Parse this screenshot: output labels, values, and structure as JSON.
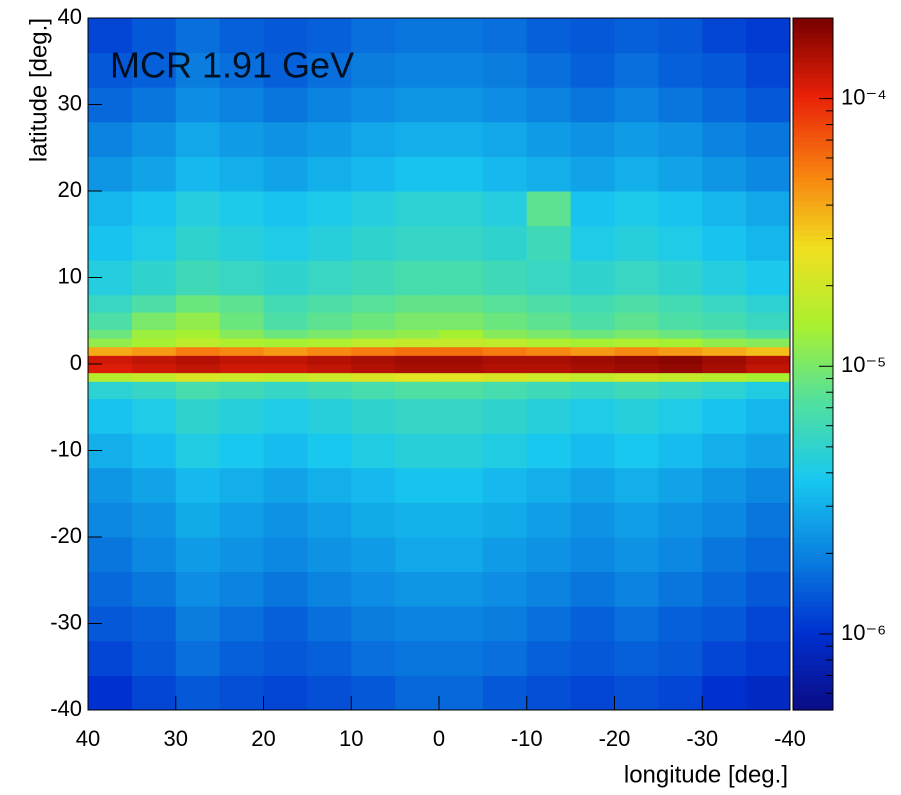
{
  "chart_data": {
    "type": "heatmap",
    "title": "MCR 1.91 GeV",
    "x_label": "longitude [deg.]",
    "y_label": "latitude [deg.]",
    "xlim": [
      40,
      -40
    ],
    "ylim": [
      -40,
      40
    ],
    "xticks": [
      40,
      30,
      20,
      10,
      0,
      -10,
      -20,
      -30,
      -40
    ],
    "yticks": [
      -40,
      -30,
      -20,
      -10,
      0,
      10,
      20,
      30,
      40
    ],
    "log_z": true,
    "zlim": [
      5.2e-07,
      0.0002
    ],
    "zticks": [
      {
        "value": 1e-06,
        "label": "10⁻⁶"
      },
      {
        "value": 1e-05,
        "label": "10⁻⁵"
      },
      {
        "value": 0.0001,
        "label": "10⁻⁴"
      }
    ],
    "colorscale": [
      "#0b0b85",
      "#0030d0",
      "#0a80e0",
      "#18c8f0",
      "#50e0a0",
      "#a8f030",
      "#f0e020",
      "#f88010",
      "#e82008",
      "#780000"
    ],
    "x_bins": [
      40,
      35,
      30,
      25,
      20,
      15,
      10,
      5,
      0,
      -5,
      -10,
      -15,
      -20,
      -25,
      -30,
      -35,
      -40
    ],
    "y_bins": [
      -40,
      -36,
      -32,
      -28,
      -24,
      -20,
      -16,
      -12,
      -8,
      -4,
      -2,
      -1,
      0,
      1,
      2,
      3,
      4,
      6,
      8,
      12,
      16,
      20,
      24,
      28,
      32,
      36,
      40
    ],
    "z": [
      [
        1e-06,
        1.2e-06,
        1.4e-06,
        1.3e-06,
        1.2e-06,
        1.3e-06,
        1.4e-06,
        1.6e-06,
        1.6e-06,
        1.4e-06,
        1.3e-06,
        1.2e-06,
        1.3e-06,
        1.2e-06,
        1e-06,
        9e-07
      ],
      [
        1.2e-06,
        1.4e-06,
        1.7e-06,
        1.5e-06,
        1.4e-06,
        1.5e-06,
        1.7e-06,
        1.8e-06,
        1.8e-06,
        1.7e-06,
        1.5e-06,
        1.4e-06,
        1.5e-06,
        1.4e-06,
        1.2e-06,
        1.1e-06
      ],
      [
        1.4e-06,
        1.5e-06,
        1.9e-06,
        1.7e-06,
        1.5e-06,
        1.7e-06,
        1.9e-06,
        2e-06,
        2e-06,
        1.9e-06,
        1.7e-06,
        1.5e-06,
        1.7e-06,
        1.5e-06,
        1.4e-06,
        1.2e-06
      ],
      [
        1.6e-06,
        1.8e-06,
        2.2e-06,
        2e-06,
        1.8e-06,
        2e-06,
        2.2e-06,
        2.4e-06,
        2.4e-06,
        2.2e-06,
        2e-06,
        1.8e-06,
        2e-06,
        1.8e-06,
        1.6e-06,
        1.4e-06
      ],
      [
        1.8e-06,
        2.1e-06,
        2.5e-06,
        2.3e-06,
        2.1e-06,
        2.3e-06,
        2.5e-06,
        2.8e-06,
        2.8e-06,
        2.5e-06,
        2.3e-06,
        2.1e-06,
        2.3e-06,
        2.1e-06,
        1.8e-06,
        1.6e-06
      ],
      [
        2.1e-06,
        2.3e-06,
        2.9e-06,
        2.6e-06,
        2.3e-06,
        2.6e-06,
        2.9e-06,
        3.1e-06,
        3.1e-06,
        2.9e-06,
        2.6e-06,
        2.3e-06,
        2.6e-06,
        2.3e-06,
        2.1e-06,
        1.8e-06
      ],
      [
        2.4e-06,
        2.7e-06,
        3.3e-06,
        3e-06,
        2.7e-06,
        3e-06,
        3.3e-06,
        3.6e-06,
        3.6e-06,
        3.3e-06,
        3e-06,
        2.7e-06,
        3e-06,
        2.7e-06,
        2.4e-06,
        2.1e-06
      ],
      [
        3e-06,
        3.4e-06,
        4.2e-06,
        3.8e-06,
        3.4e-06,
        3.8e-06,
        4.2e-06,
        4.6e-06,
        4.6e-06,
        4.2e-06,
        3.8e-06,
        3.4e-06,
        3.8e-06,
        3.4e-06,
        3e-06,
        2.7e-06
      ],
      [
        3.6e-06,
        4.1e-06,
        5e-06,
        4.5e-06,
        4.1e-06,
        4.5e-06,
        5e-06,
        5.4e-06,
        5.4e-06,
        5e-06,
        4.5e-06,
        4.1e-06,
        4.5e-06,
        4.1e-06,
        3.6e-06,
        3.2e-06
      ],
      [
        4.8e-06,
        5.4e-06,
        6.6e-06,
        6e-06,
        5.4e-06,
        6e-06,
        6.6e-06,
        7.2e-06,
        7.2e-06,
        6.6e-06,
        6e-06,
        5.4e-06,
        6e-06,
        5.4e-06,
        4.8e-06,
        4.2e-06
      ],
      [
        1.6e-05,
        1.8e-05,
        2.2e-05,
        2e-05,
        1.8e-05,
        2e-05,
        2.2e-05,
        2.4e-05,
        2.4e-05,
        2.2e-05,
        2e-05,
        1.8e-05,
        2e-05,
        1.8e-05,
        1.6e-05,
        1.4e-05
      ],
      [
        0.00011,
        0.00012,
        0.00013,
        0.00012,
        0.00012,
        0.00013,
        0.00014,
        0.00015,
        0.00015,
        0.00014,
        0.00014,
        0.00015,
        0.00016,
        0.00017,
        0.00015,
        0.00013
      ],
      [
        0.00012,
        0.00013,
        0.00014,
        0.00013,
        0.00013,
        0.00014,
        0.00015,
        0.00016,
        0.00016,
        0.00015,
        0.00015,
        0.00016,
        0.00017,
        0.00018,
        0.00016,
        0.00014
      ],
      [
        4e-05,
        4.5e-05,
        5.5e-05,
        5e-05,
        4.5e-05,
        5e-05,
        5.5e-05,
        6e-05,
        6e-05,
        5.5e-05,
        5e-05,
        4.5e-05,
        5e-05,
        4.5e-05,
        4e-05,
        3.5e-05
      ],
      [
        1.2e-05,
        1.4e-05,
        1.7e-05,
        1.5e-05,
        1.4e-05,
        1.5e-05,
        1.7e-05,
        1.8e-05,
        1.8e-05,
        1.7e-05,
        1.5e-05,
        1.4e-05,
        1.5e-05,
        1.4e-05,
        1.2e-05,
        1.1e-05
      ],
      [
        9e-06,
        1.3e-05,
        1.4e-05,
        1.1e-05,
        9e-06,
        1e-05,
        1.1e-05,
        1.2e-05,
        1.4e-05,
        1.1e-05,
        1e-05,
        9e-06,
        1e-05,
        9e-06,
        8e-06,
        7e-06
      ],
      [
        7e-06,
        1e-05,
        1.2e-05,
        9e-06,
        7e-06,
        8e-06,
        9e-06,
        1e-05,
        1e-05,
        9e-06,
        8e-06,
        7e-06,
        8e-06,
        7e-06,
        6.4e-06,
        5.6e-06
      ],
      [
        5.6e-06,
        7e-06,
        9e-06,
        8e-06,
        6.3e-06,
        7e-06,
        7.7e-06,
        8.4e-06,
        8.4e-06,
        7.7e-06,
        7e-06,
        6.3e-06,
        7e-06,
        6.3e-06,
        5.6e-06,
        4.9e-06
      ],
      [
        4.4e-06,
        5e-06,
        6e-06,
        5.5e-06,
        5e-06,
        5.5e-06,
        6e-06,
        6.6e-06,
        6.6e-06,
        6e-06,
        5.5e-06,
        5e-06,
        5.5e-06,
        5e-06,
        4.4e-06,
        3.9e-06
      ],
      [
        3.6e-06,
        4.1e-06,
        5e-06,
        4.5e-06,
        4.1e-06,
        4.5e-06,
        5e-06,
        5.4e-06,
        5.4e-06,
        5e-06,
        6e-06,
        4.1e-06,
        4.5e-06,
        4.1e-06,
        3.6e-06,
        3.2e-06
      ],
      [
        3.2e-06,
        3.6e-06,
        4.4e-06,
        4e-06,
        3.6e-06,
        4e-06,
        4.4e-06,
        4.8e-06,
        4.8e-06,
        4.4e-06,
        8e-06,
        3.6e-06,
        4e-06,
        3.6e-06,
        3.2e-06,
        2.8e-06
      ],
      [
        2.4e-06,
        2.7e-06,
        3.3e-06,
        3e-06,
        2.7e-06,
        3e-06,
        3.3e-06,
        3.6e-06,
        3.6e-06,
        3.3e-06,
        3e-06,
        2.7e-06,
        3e-06,
        2.7e-06,
        2.4e-06,
        2.1e-06
      ],
      [
        2e-06,
        2.3e-06,
        2.8e-06,
        2.5e-06,
        2.3e-06,
        2.5e-06,
        2.8e-06,
        3e-06,
        3e-06,
        2.8e-06,
        2.5e-06,
        2.3e-06,
        2.5e-06,
        2.3e-06,
        2e-06,
        1.8e-06
      ],
      [
        1.6e-06,
        1.8e-06,
        2.2e-06,
        2e-06,
        1.8e-06,
        2e-06,
        2.2e-06,
        2.4e-06,
        2.4e-06,
        2.2e-06,
        2e-06,
        1.8e-06,
        2e-06,
        1.8e-06,
        1.6e-06,
        1.4e-06
      ],
      [
        1.4e-06,
        1.5e-06,
        1.9e-06,
        1.7e-06,
        1.5e-06,
        1.7e-06,
        1.9e-06,
        2e-06,
        2e-06,
        1.9e-06,
        1.7e-06,
        1.5e-06,
        1.7e-06,
        1.5e-06,
        1.4e-06,
        1.2e-06
      ],
      [
        1.2e-06,
        1.4e-06,
        1.7e-06,
        1.5e-06,
        1.4e-06,
        1.5e-06,
        1.7e-06,
        1.8e-06,
        1.8e-06,
        1.7e-06,
        1.5e-06,
        1.4e-06,
        1.5e-06,
        1.4e-06,
        1.2e-06,
        1.1e-06
      ]
    ]
  }
}
